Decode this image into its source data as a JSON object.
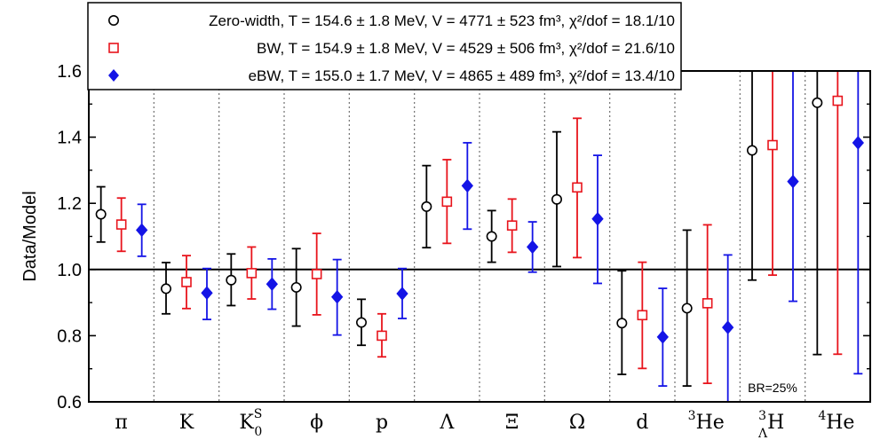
{
  "chart_data": {
    "type": "scatter",
    "ylabel": "Data/Model",
    "ylim": [
      0.6,
      1.6
    ],
    "yticks": [
      "0.6",
      "0.8",
      "1.0",
      "1.2",
      "1.4",
      "1.6"
    ],
    "reference_line": 1.0,
    "grid": "vertical dotted separators between categories",
    "legend_position": "top-left",
    "categories": [
      {
        "name": "π",
        "kind": "plain"
      },
      {
        "name": "K",
        "kind": "plain"
      },
      {
        "name": "K",
        "kind": "sub_sup",
        "sup": "S",
        "sub": "0"
      },
      {
        "name": "ϕ",
        "kind": "plain"
      },
      {
        "name": "p",
        "kind": "plain"
      },
      {
        "name": "Λ",
        "kind": "plain"
      },
      {
        "name": "Ξ",
        "kind": "plain"
      },
      {
        "name": "Ω",
        "kind": "plain"
      },
      {
        "name": "d",
        "kind": "plain"
      },
      {
        "name": "He",
        "kind": "pre_sup",
        "pre": "3"
      },
      {
        "name": "H",
        "kind": "pre_sup_sub",
        "pre": "3",
        "sub": "Λ"
      },
      {
        "name": "He",
        "kind": "pre_sup",
        "pre": "4"
      }
    ],
    "series": [
      {
        "name": "Zero-width",
        "legend_text": "Zero-width,  T = 154.6 ± 1.8 MeV, V = 4771 ± 523 fm³, χ²/dof = 18.1/10",
        "marker": "open-circle",
        "color": "#000000",
        "values": [
          1.167,
          0.942,
          0.968,
          0.946,
          0.84,
          1.19,
          1.1,
          1.212,
          0.838,
          0.883,
          1.36,
          1.504
        ],
        "err_low": [
          1.083,
          0.866,
          0.891,
          0.829,
          0.771,
          1.066,
          1.022,
          1.009,
          0.683,
          0.648,
          0.968,
          0.743
        ],
        "err_high": [
          1.25,
          1.021,
          1.047,
          1.063,
          0.91,
          1.314,
          1.178,
          1.416,
          0.996,
          1.119,
          1.6,
          1.6
        ]
      },
      {
        "name": "BW",
        "legend_text": "BW,  T = 154.9 ± 1.8 MeV, V = 4529 ± 506 fm³, χ²/dof = 21.6/10",
        "marker": "open-square",
        "color": "#e8141c",
        "values": [
          1.136,
          0.962,
          0.989,
          0.986,
          0.8,
          1.205,
          1.133,
          1.248,
          0.862,
          0.898,
          1.376,
          1.51
        ],
        "err_low": [
          1.055,
          0.882,
          0.911,
          0.863,
          0.736,
          1.079,
          1.052,
          1.036,
          0.701,
          0.656,
          0.983,
          0.744
        ],
        "err_high": [
          1.216,
          1.042,
          1.068,
          1.109,
          0.866,
          1.332,
          1.213,
          1.457,
          1.022,
          1.135,
          1.6,
          1.6
        ]
      },
      {
        "name": "eBW",
        "legend_text": "eBW,  T = 155.0 ± 1.7 MeV, V = 4865 ± 489 fm³, χ²/dof = 13.4/10",
        "marker": "filled-diamond",
        "color": "#1414e6",
        "values": [
          1.119,
          0.929,
          0.956,
          0.917,
          0.927,
          1.253,
          1.068,
          1.153,
          0.796,
          0.825,
          1.266,
          1.383
        ],
        "err_low": [
          1.04,
          0.849,
          0.88,
          0.802,
          0.852,
          1.122,
          0.992,
          0.958,
          0.648,
          0.6,
          0.904,
          0.685
        ],
        "err_high": [
          1.197,
          1.003,
          1.032,
          1.03,
          1.003,
          1.383,
          1.144,
          1.345,
          0.943,
          1.044,
          1.6,
          1.6
        ]
      }
    ],
    "annotations": [
      {
        "text": "BR=25%",
        "category_index": 10
      }
    ]
  }
}
